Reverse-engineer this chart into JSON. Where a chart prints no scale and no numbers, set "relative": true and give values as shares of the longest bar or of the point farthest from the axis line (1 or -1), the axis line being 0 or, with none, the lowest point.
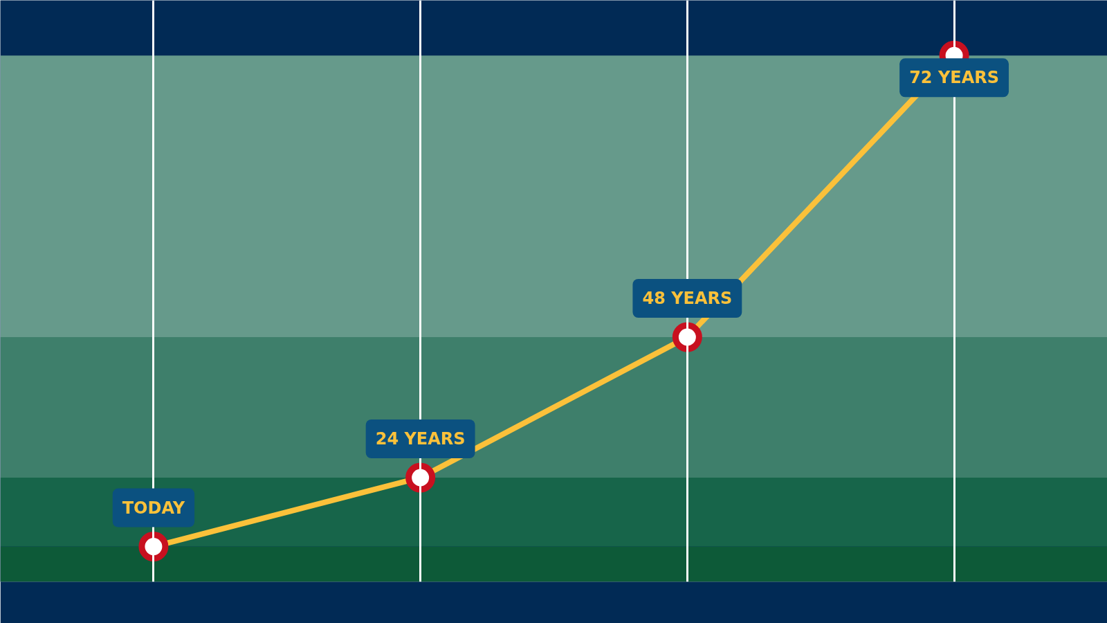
{
  "chart_data": {
    "type": "line",
    "relative": true,
    "categories": [
      null,
      null,
      null,
      null
    ],
    "series": [
      {
        "color": "#fbc13a",
        "values": [
          0.067,
          0.198,
          0.465,
          1.0
        ]
      }
    ],
    "marker": "circle",
    "grid": "x",
    "tick_labels": false,
    "bands": [
      {
        "axis": "y",
        "from": 0,
        "to": 0.067,
        "color": "#0d5a38"
      },
      {
        "axis": "y",
        "from": 0.067,
        "to": 0.198,
        "color": "#17654a"
      },
      {
        "axis": "y",
        "from": 0.198,
        "to": 0.465,
        "color": "#3e7f6b"
      },
      {
        "axis": "y",
        "from": 0.465,
        "to": 1.0,
        "color": "#669a8b"
      }
    ],
    "annotations": [
      {
        "text": "TODAY",
        "y": 0.067
      },
      {
        "text": "24 YEARS",
        "y": 0.198
      },
      {
        "text": "48 YEARS",
        "y": 0.465
      },
      {
        "text": "72 YEARS",
        "y": 1.0
      }
    ]
  }
}
